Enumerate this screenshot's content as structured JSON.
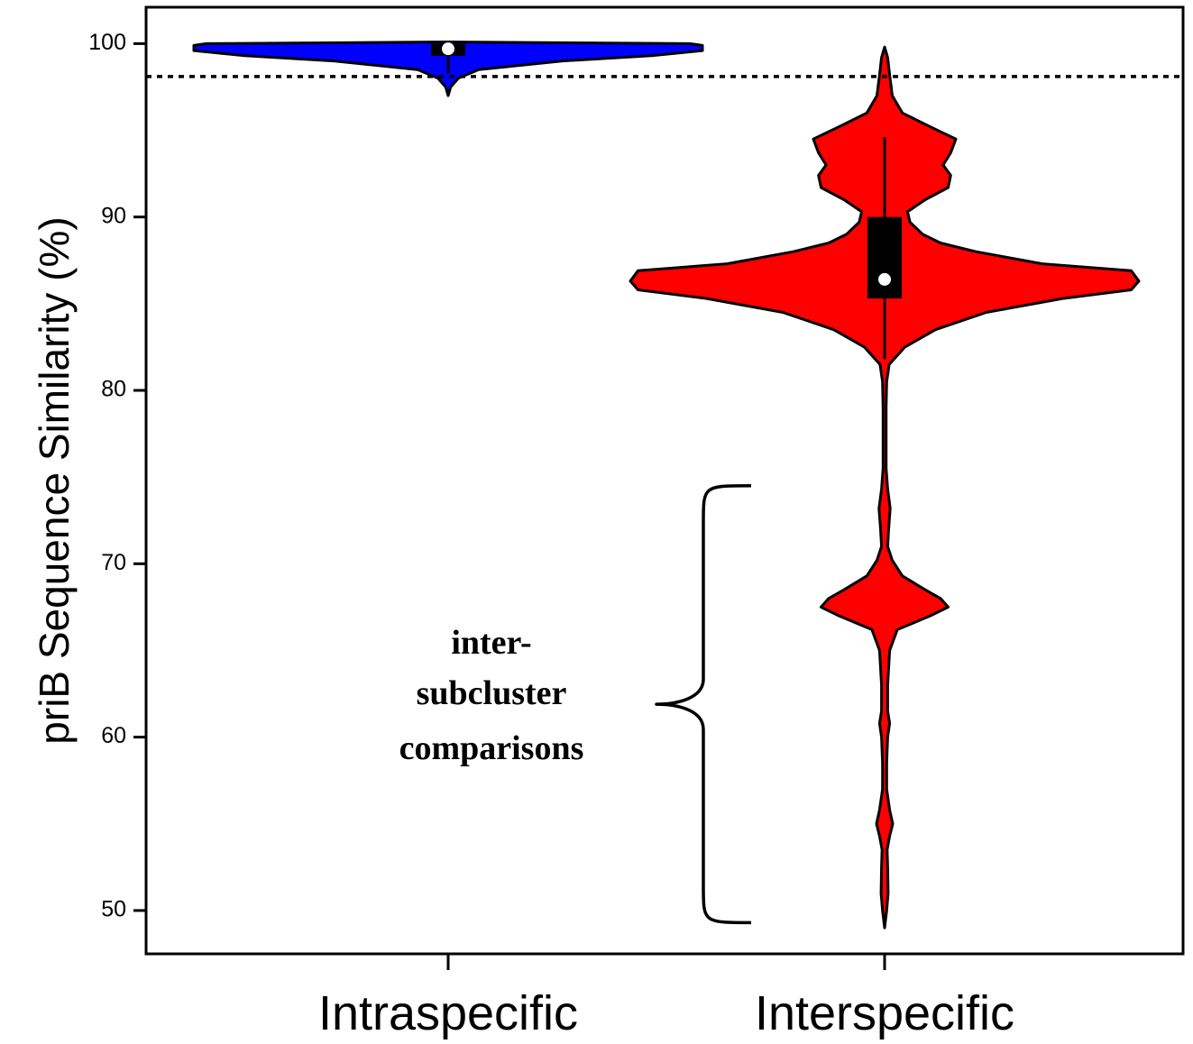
{
  "chart_data": {
    "type": "violin",
    "title": "",
    "xlabel": "",
    "ylabel": "priB Sequence Similarity (%)",
    "ylim": [
      47.5,
      102.1
    ],
    "yticks": [
      50,
      60,
      70,
      80,
      90,
      100
    ],
    "categories": [
      "Intraspecific",
      "Interspecific"
    ],
    "grid": false,
    "threshold_line": {
      "y": 98.1,
      "style": "dotted"
    },
    "series": [
      {
        "category": "Intraspecific",
        "color": "#0000ff",
        "box": {
          "q1": 99.3,
          "q3": 100.0,
          "median": 99.7,
          "whisker_low": 98.3,
          "whisker_high": 100.0
        },
        "density": [
          [
            97.0,
            0.0
          ],
          [
            97.5,
            0.01
          ],
          [
            98.0,
            0.04
          ],
          [
            98.5,
            0.12
          ],
          [
            99.0,
            0.45
          ],
          [
            99.3,
            0.8
          ],
          [
            99.6,
            1.0
          ],
          [
            99.9,
            1.0
          ],
          [
            100.0,
            0.95
          ],
          [
            100.1,
            0.0
          ]
        ]
      },
      {
        "category": "Interspecific",
        "color": "#ff0000",
        "box": {
          "q1": 85.3,
          "q3": 90.0,
          "median": 86.4,
          "whisker_low": 81.8,
          "whisker_high": 94.6
        },
        "density": [
          [
            49.0,
            0.0
          ],
          [
            50.0,
            0.008
          ],
          [
            51.0,
            0.014
          ],
          [
            52.5,
            0.012
          ],
          [
            53.5,
            0.01
          ],
          [
            54.3,
            0.02
          ],
          [
            55.0,
            0.032
          ],
          [
            55.8,
            0.02
          ],
          [
            57.0,
            0.008
          ],
          [
            58.5,
            0.008
          ],
          [
            60.0,
            0.012
          ],
          [
            60.8,
            0.02
          ],
          [
            61.5,
            0.012
          ],
          [
            63.0,
            0.012
          ],
          [
            65.0,
            0.02
          ],
          [
            66.2,
            0.05
          ],
          [
            67.0,
            0.18
          ],
          [
            67.5,
            0.25
          ],
          [
            68.0,
            0.22
          ],
          [
            68.5,
            0.16
          ],
          [
            69.3,
            0.07
          ],
          [
            70.2,
            0.03
          ],
          [
            71.0,
            0.012
          ],
          [
            72.0,
            0.016
          ],
          [
            73.2,
            0.022
          ],
          [
            74.3,
            0.012
          ],
          [
            75.5,
            0.006
          ],
          [
            77.0,
            0.006
          ],
          [
            79.0,
            0.006
          ],
          [
            80.5,
            0.008
          ],
          [
            81.5,
            0.018
          ],
          [
            82.5,
            0.08
          ],
          [
            83.5,
            0.2
          ],
          [
            84.5,
            0.4
          ],
          [
            85.3,
            0.7
          ],
          [
            85.8,
            0.97
          ],
          [
            86.3,
            1.0
          ],
          [
            86.9,
            0.97
          ],
          [
            87.3,
            0.62
          ],
          [
            88.0,
            0.36
          ],
          [
            88.5,
            0.22
          ],
          [
            89.0,
            0.15
          ],
          [
            89.7,
            0.1
          ],
          [
            90.3,
            0.09
          ],
          [
            91.0,
            0.16
          ],
          [
            91.7,
            0.25
          ],
          [
            92.4,
            0.26
          ],
          [
            93.0,
            0.23
          ],
          [
            93.7,
            0.26
          ],
          [
            94.5,
            0.28
          ],
          [
            95.2,
            0.18
          ],
          [
            96.0,
            0.07
          ],
          [
            97.0,
            0.03
          ],
          [
            98.2,
            0.02
          ],
          [
            99.2,
            0.012
          ],
          [
            99.8,
            0.0
          ]
        ]
      }
    ],
    "annotation": {
      "lines": [
        "inter-",
        "subcluster",
        "comparisons"
      ],
      "range": [
        49.3,
        74.5
      ]
    }
  }
}
